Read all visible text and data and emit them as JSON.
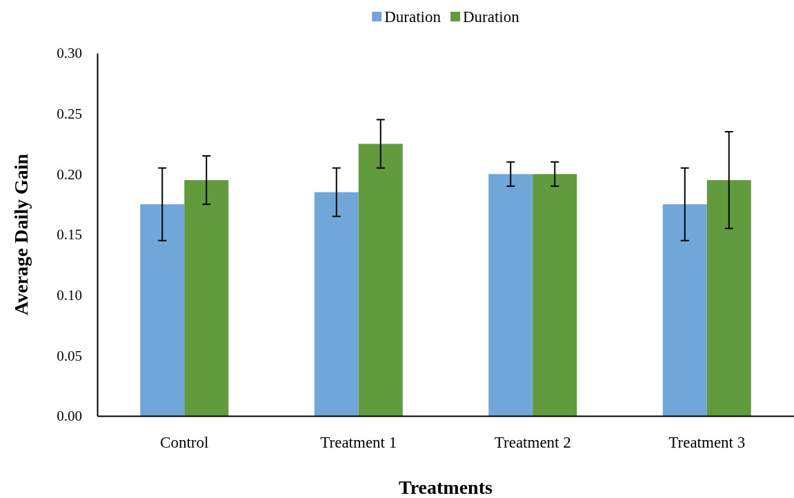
{
  "chart_data": {
    "type": "bar",
    "xlabel": "Treatments",
    "ylabel": "Average Daily Gain",
    "categories": [
      "Control",
      "Treatment 1",
      "Treatment 2",
      "Treatment 3"
    ],
    "series": [
      {
        "name": "Duration",
        "color": "#70a7d8",
        "values": [
          0.175,
          0.185,
          0.2,
          0.175
        ],
        "errors": [
          0.03,
          0.02,
          0.01,
          0.03
        ]
      },
      {
        "name": "Duration",
        "color": "#629b3d",
        "values": [
          0.195,
          0.225,
          0.2,
          0.195
        ],
        "errors": [
          0.02,
          0.02,
          0.01,
          0.04
        ]
      }
    ],
    "ylim": [
      0,
      0.3
    ],
    "yticks": [
      {
        "value": 0,
        "label": "0.00"
      },
      {
        "value": 0.05,
        "label": "0.05"
      },
      {
        "value": 0.1,
        "label": "0.10"
      },
      {
        "value": 0.15,
        "label": "0.15"
      },
      {
        "value": 0.2,
        "label": "0.20"
      },
      {
        "value": 0.25,
        "label": "0.25"
      },
      {
        "value": 0.3,
        "label": "0.30"
      }
    ],
    "grid": false,
    "legend": "top"
  }
}
